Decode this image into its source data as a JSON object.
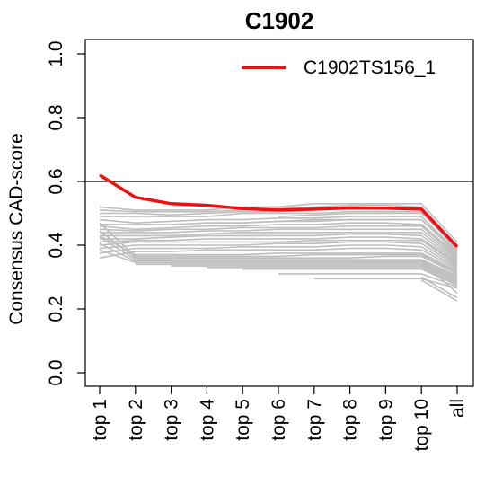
{
  "chart_data": {
    "type": "line",
    "title": "C1902",
    "xlabel": "",
    "ylabel": "Consensus CAD-score",
    "categories": [
      "top 1",
      "top 2",
      "top 3",
      "top 4",
      "top 5",
      "top 6",
      "top 7",
      "top 8",
      "top 9",
      "top 10",
      "all"
    ],
    "ylim": [
      0.0,
      1.0
    ],
    "yticks": [
      "0.0",
      "0.2",
      "0.4",
      "0.6",
      "0.8",
      "1.0"
    ],
    "reference_line": 0.6,
    "grid": false,
    "legend_position": "top-right",
    "highlight_series": {
      "name": "C1902TS156_1",
      "color": "#ee1111",
      "values": [
        0.62,
        0.55,
        0.53,
        0.525,
        0.515,
        0.51,
        0.513,
        0.517,
        0.516,
        0.513,
        0.395
      ]
    },
    "background_series_color": "#bebebe",
    "background_series": [
      [
        0.52,
        0.51,
        0.51,
        0.51,
        0.52,
        0.52,
        0.53,
        0.53,
        0.53,
        0.53,
        0.41
      ],
      [
        0.51,
        0.505,
        0.505,
        0.505,
        0.51,
        0.515,
        0.52,
        0.525,
        0.525,
        0.52,
        0.4
      ],
      [
        0.5,
        0.5,
        0.495,
        0.5,
        0.505,
        0.505,
        0.51,
        0.515,
        0.515,
        0.515,
        0.39
      ],
      [
        0.49,
        0.49,
        0.49,
        0.49,
        0.5,
        0.5,
        0.5,
        0.505,
        0.505,
        0.505,
        0.385
      ],
      [
        0.48,
        0.47,
        0.475,
        0.48,
        0.48,
        0.485,
        0.485,
        0.49,
        0.49,
        0.49,
        0.38
      ],
      [
        0.465,
        0.465,
        0.465,
        0.47,
        0.47,
        0.475,
        0.475,
        0.48,
        0.48,
        0.48,
        0.375
      ],
      [
        0.46,
        0.45,
        0.455,
        0.46,
        0.46,
        0.465,
        0.465,
        0.47,
        0.47,
        0.465,
        0.37
      ],
      [
        0.45,
        0.445,
        0.45,
        0.45,
        0.455,
        0.455,
        0.455,
        0.46,
        0.46,
        0.46,
        0.365
      ],
      [
        0.44,
        0.44,
        0.44,
        0.445,
        0.445,
        0.45,
        0.45,
        0.45,
        0.45,
        0.45,
        0.36
      ],
      [
        0.43,
        0.43,
        0.43,
        0.435,
        0.44,
        0.44,
        0.44,
        0.44,
        0.44,
        0.44,
        0.355
      ],
      [
        0.42,
        0.42,
        0.425,
        0.43,
        0.43,
        0.43,
        0.43,
        0.435,
        0.435,
        0.43,
        0.35
      ],
      [
        0.41,
        0.415,
        0.415,
        0.42,
        0.42,
        0.42,
        0.42,
        0.425,
        0.425,
        0.42,
        0.345
      ],
      [
        0.4,
        0.41,
        0.41,
        0.41,
        0.41,
        0.41,
        0.415,
        0.415,
        0.415,
        0.415,
        0.34
      ],
      [
        0.39,
        0.4,
        0.4,
        0.4,
        0.4,
        0.405,
        0.405,
        0.41,
        0.41,
        0.405,
        0.335
      ],
      [
        0.375,
        0.39,
        0.39,
        0.39,
        0.395,
        0.395,
        0.395,
        0.4,
        0.4,
        0.395,
        0.33
      ],
      [
        0.36,
        0.38,
        0.38,
        0.385,
        0.385,
        0.385,
        0.385,
        0.39,
        0.39,
        0.385,
        0.325
      ],
      [
        0.43,
        0.37,
        0.37,
        0.37,
        0.37,
        0.375,
        0.375,
        0.375,
        0.375,
        0.375,
        0.32
      ],
      [
        0.47,
        0.365,
        0.365,
        0.365,
        0.365,
        0.365,
        0.37,
        0.37,
        0.37,
        0.37,
        0.315
      ],
      [
        0.445,
        0.36,
        0.36,
        0.36,
        0.36,
        0.36,
        0.36,
        0.36,
        0.365,
        0.365,
        0.31
      ],
      [
        0.425,
        0.355,
        0.355,
        0.355,
        0.355,
        0.355,
        0.355,
        0.355,
        0.355,
        0.355,
        0.305
      ],
      [
        0.405,
        0.35,
        0.35,
        0.35,
        0.35,
        0.35,
        0.35,
        0.35,
        0.35,
        0.35,
        0.3
      ],
      [
        0.385,
        0.345,
        0.345,
        0.345,
        0.345,
        0.345,
        0.345,
        0.345,
        0.345,
        0.345,
        0.295
      ],
      [
        null,
        0.34,
        0.34,
        0.34,
        0.34,
        0.34,
        0.34,
        0.34,
        0.34,
        0.34,
        0.29
      ],
      [
        null,
        null,
        0.335,
        0.335,
        0.335,
        0.335,
        0.335,
        0.335,
        0.335,
        0.335,
        0.285
      ],
      [
        null,
        null,
        null,
        0.33,
        0.33,
        0.33,
        0.33,
        0.33,
        0.33,
        0.33,
        0.28
      ],
      [
        null,
        null,
        null,
        null,
        0.325,
        0.325,
        0.325,
        0.325,
        0.325,
        0.325,
        0.275
      ],
      [
        null,
        null,
        null,
        null,
        null,
        0.31,
        0.31,
        0.31,
        0.31,
        0.31,
        0.27
      ],
      [
        null,
        null,
        null,
        null,
        null,
        null,
        0.295,
        0.295,
        0.295,
        0.295,
        0.265
      ],
      [
        null,
        null,
        null,
        null,
        null,
        0.49,
        0.495,
        0.5,
        0.5,
        0.5,
        0.4
      ],
      [
        null,
        null,
        null,
        0.47,
        0.47,
        0.475,
        0.48,
        0.48,
        0.48,
        0.48,
        0.38
      ],
      [
        null,
        null,
        null,
        null,
        null,
        null,
        null,
        0.35,
        0.35,
        0.35,
        0.25
      ],
      [
        null,
        null,
        null,
        null,
        null,
        null,
        null,
        null,
        null,
        0.3,
        0.235
      ],
      [
        null,
        null,
        null,
        null,
        null,
        null,
        null,
        null,
        null,
        0.29,
        0.225
      ]
    ]
  }
}
